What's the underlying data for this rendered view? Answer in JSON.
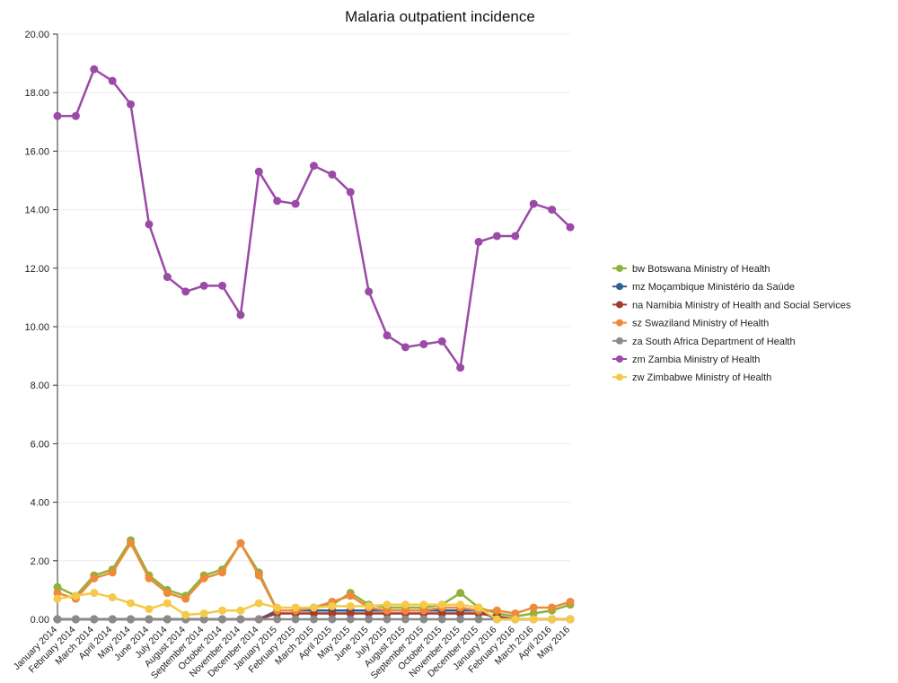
{
  "chart_data": {
    "type": "line",
    "title": "Malaria outpatient incidence",
    "xlabel": "",
    "ylabel": "",
    "ylim": [
      0,
      20
    ],
    "yticks": [
      "0.00",
      "2.00",
      "4.00",
      "6.00",
      "8.00",
      "10.00",
      "12.00",
      "14.00",
      "16.00",
      "18.00",
      "20.00"
    ],
    "grid": true,
    "legend_position": "right",
    "categories": [
      "January 2014",
      "February 2014",
      "March 2014",
      "April 2014",
      "May 2014",
      "June 2014",
      "July 2014",
      "August 2014",
      "September 2014",
      "October 2014",
      "November 2014",
      "December 2014",
      "January 2015",
      "February 2015",
      "March 2015",
      "April 2015",
      "May 2015",
      "June 2015",
      "July 2015",
      "August 2015",
      "September 2015",
      "October 2015",
      "November 2015",
      "December 2015",
      "January 2016",
      "February 2016",
      "March 2016",
      "April 2016",
      "May 2016"
    ],
    "series": [
      {
        "name": "bw Botswana Ministry of Health",
        "color": "#8db33a",
        "values": [
          1.1,
          0.8,
          1.5,
          1.7,
          2.7,
          1.5,
          1.0,
          0.8,
          1.5,
          1.7,
          2.6,
          1.6,
          0.3,
          0.3,
          0.4,
          0.5,
          0.9,
          0.5,
          0.4,
          0.4,
          0.4,
          0.5,
          0.9,
          0.4,
          0.2,
          0.1,
          0.2,
          0.3,
          0.5
        ]
      },
      {
        "name": "mz Moçambique Ministério da Saúde",
        "color": "#2f5f8f",
        "values": [
          0.0,
          0.0,
          0.0,
          0.0,
          0.0,
          0.0,
          0.0,
          0.0,
          0.0,
          0.0,
          0.0,
          0.0,
          0.3,
          0.3,
          0.3,
          0.3,
          0.3,
          0.3,
          0.3,
          0.3,
          0.3,
          0.3,
          0.3,
          0.3,
          0.0,
          0.0,
          0.0,
          0.0,
          0.0
        ]
      },
      {
        "name": "na Namibia Ministry of Health and Social Services",
        "color": "#a33b2e",
        "values": [
          0.0,
          0.0,
          0.0,
          0.0,
          0.0,
          0.0,
          0.0,
          0.0,
          0.0,
          0.0,
          0.0,
          0.0,
          0.2,
          0.2,
          0.2,
          0.2,
          0.2,
          0.2,
          0.2,
          0.2,
          0.2,
          0.2,
          0.2,
          0.2,
          0.1,
          0.0,
          0.0,
          0.0,
          0.0
        ]
      },
      {
        "name": "sz Swaziland Ministry of Health",
        "color": "#ee8a3a",
        "values": [
          0.9,
          0.7,
          1.4,
          1.6,
          2.6,
          1.4,
          0.9,
          0.7,
          1.4,
          1.6,
          2.6,
          1.5,
          0.3,
          0.3,
          0.4,
          0.6,
          0.8,
          0.4,
          0.3,
          0.3,
          0.3,
          0.4,
          0.4,
          0.3,
          0.3,
          0.2,
          0.4,
          0.4,
          0.6
        ]
      },
      {
        "name": "za South Africa Department of Health",
        "color": "#8a8a8a",
        "values": [
          0.0,
          0.0,
          0.0,
          0.0,
          0.0,
          0.0,
          0.0,
          0.0,
          0.0,
          0.0,
          0.0,
          0.0,
          0.0,
          0.0,
          0.0,
          0.0,
          0.0,
          0.0,
          0.0,
          0.0,
          0.0,
          0.0,
          0.0,
          0.0,
          0.0,
          0.0,
          0.0,
          0.0,
          0.0
        ]
      },
      {
        "name": "zm Zambia Ministry of Health",
        "color": "#9b4aa7",
        "values": [
          17.2,
          17.2,
          18.8,
          18.4,
          17.6,
          13.5,
          11.7,
          11.2,
          11.4,
          11.4,
          10.4,
          15.3,
          14.3,
          14.2,
          15.5,
          15.2,
          14.6,
          11.2,
          9.7,
          9.3,
          9.4,
          9.5,
          8.6,
          12.9,
          13.1,
          13.1,
          14.2,
          14.0,
          13.4
        ]
      },
      {
        "name": "zw Zimbabwe Ministry of Health",
        "color": "#f5c94a",
        "values": [
          0.7,
          0.8,
          0.9,
          0.75,
          0.55,
          0.35,
          0.55,
          0.15,
          0.2,
          0.3,
          0.3,
          0.55,
          0.4,
          0.4,
          0.4,
          0.45,
          0.45,
          0.45,
          0.5,
          0.5,
          0.5,
          0.5,
          0.5,
          0.4,
          0.0,
          0.0,
          0.0,
          0.0,
          0.0
        ]
      }
    ]
  }
}
